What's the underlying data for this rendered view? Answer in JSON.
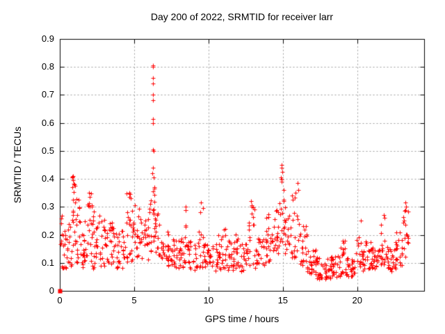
{
  "title": "Day 200 of 2022, SRMTID for receiver larr",
  "chart_data": {
    "type": "scatter",
    "title": "Day 200 of 2022, SRMTID for receiver larr",
    "xlabel": "GPS time / hours",
    "ylabel": "SRMTID / TECUs",
    "xlim": [
      0,
      24.5
    ],
    "ylim": [
      0,
      0.9
    ],
    "xticks": [
      0,
      5,
      10,
      15,
      20
    ],
    "xtick_labels": [
      "0",
      "5",
      "10",
      "15",
      "20"
    ],
    "yticks": [
      0,
      0.1,
      0.2,
      0.3,
      0.4,
      0.5,
      0.6,
      0.7,
      0.8,
      0.9
    ],
    "ytick_labels": [
      "0",
      "0.1",
      "0.2",
      "0.3",
      "0.4",
      "0.5",
      "0.6",
      "0.7",
      "0.8",
      "0.9"
    ],
    "grid": true,
    "grid_color": "#9a9a9a",
    "axis_color": "#000000",
    "marker": "plus",
    "marker_color": "#ff0000",
    "origin_square_point": [
      0.0,
      0.0
    ],
    "bands_comment": "density envelope read from plot: [hour_start, hour_end, value_lo, value_hi, n_points]",
    "bands": [
      [
        0.05,
        0.35,
        0.08,
        0.3,
        16
      ],
      [
        0.35,
        0.8,
        0.08,
        0.26,
        20
      ],
      [
        0.8,
        1.05,
        0.15,
        0.41,
        16
      ],
      [
        1.05,
        1.45,
        0.1,
        0.33,
        18
      ],
      [
        1.45,
        1.8,
        0.08,
        0.27,
        18
      ],
      [
        1.8,
        2.2,
        0.1,
        0.35,
        20
      ],
      [
        2.2,
        2.7,
        0.08,
        0.3,
        22
      ],
      [
        2.7,
        3.2,
        0.08,
        0.26,
        22
      ],
      [
        3.2,
        3.8,
        0.09,
        0.25,
        24
      ],
      [
        3.8,
        4.4,
        0.08,
        0.23,
        24
      ],
      [
        4.4,
        4.95,
        0.1,
        0.35,
        22
      ],
      [
        4.95,
        5.45,
        0.12,
        0.31,
        20
      ],
      [
        5.45,
        5.95,
        0.11,
        0.26,
        20
      ],
      [
        5.95,
        6.2,
        0.14,
        0.33,
        10
      ],
      [
        6.2,
        6.42,
        0.17,
        0.4,
        16
      ],
      [
        6.42,
        6.75,
        0.13,
        0.31,
        14
      ],
      [
        6.75,
        7.3,
        0.09,
        0.22,
        22
      ],
      [
        7.3,
        7.9,
        0.08,
        0.2,
        24
      ],
      [
        7.9,
        8.35,
        0.08,
        0.19,
        18
      ],
      [
        8.35,
        8.65,
        0.09,
        0.29,
        12
      ],
      [
        8.65,
        9.35,
        0.07,
        0.18,
        26
      ],
      [
        9.35,
        9.65,
        0.08,
        0.31,
        12
      ],
      [
        9.65,
        10.35,
        0.07,
        0.17,
        26
      ],
      [
        10.35,
        10.9,
        0.07,
        0.2,
        22
      ],
      [
        10.9,
        11.2,
        0.08,
        0.25,
        12
      ],
      [
        11.2,
        11.75,
        0.07,
        0.18,
        22
      ],
      [
        11.75,
        12.1,
        0.08,
        0.22,
        14
      ],
      [
        12.1,
        12.6,
        0.07,
        0.17,
        20
      ],
      [
        12.6,
        13.1,
        0.09,
        0.3,
        18
      ],
      [
        13.1,
        13.75,
        0.08,
        0.2,
        24
      ],
      [
        13.75,
        14.35,
        0.1,
        0.28,
        24
      ],
      [
        14.35,
        14.8,
        0.13,
        0.33,
        18
      ],
      [
        14.8,
        15.1,
        0.17,
        0.4,
        14
      ],
      [
        15.1,
        15.55,
        0.13,
        0.3,
        18
      ],
      [
        15.55,
        16.1,
        0.11,
        0.35,
        20
      ],
      [
        16.1,
        16.6,
        0.09,
        0.24,
        20
      ],
      [
        16.6,
        17.2,
        0.06,
        0.15,
        24
      ],
      [
        17.2,
        18.2,
        0.04,
        0.12,
        40
      ],
      [
        18.2,
        18.85,
        0.05,
        0.13,
        26
      ],
      [
        18.85,
        19.2,
        0.06,
        0.18,
        14
      ],
      [
        19.2,
        19.9,
        0.05,
        0.13,
        28
      ],
      [
        19.9,
        20.45,
        0.07,
        0.2,
        22
      ],
      [
        20.45,
        20.95,
        0.08,
        0.18,
        20
      ],
      [
        20.95,
        21.55,
        0.07,
        0.16,
        24
      ],
      [
        21.55,
        21.95,
        0.09,
        0.24,
        16
      ],
      [
        21.95,
        22.6,
        0.07,
        0.16,
        26
      ],
      [
        22.6,
        23.0,
        0.09,
        0.22,
        16
      ],
      [
        23.0,
        23.45,
        0.12,
        0.29,
        18
      ]
    ],
    "outliers_comment": "individually visible points [hour, value]",
    "outliers": [
      [
        0.85,
        0.405
      ],
      [
        0.88,
        0.41
      ],
      [
        0.9,
        0.395
      ],
      [
        0.86,
        0.37
      ],
      [
        1.95,
        0.35
      ],
      [
        2.02,
        0.335
      ],
      [
        4.68,
        0.35
      ],
      [
        4.72,
        0.345
      ],
      [
        4.75,
        0.33
      ],
      [
        6.26,
        0.805
      ],
      [
        6.27,
        0.8
      ],
      [
        6.27,
        0.76
      ],
      [
        6.26,
        0.74
      ],
      [
        6.28,
        0.7
      ],
      [
        6.27,
        0.68
      ],
      [
        6.25,
        0.615
      ],
      [
        6.28,
        0.6
      ],
      [
        6.26,
        0.505
      ],
      [
        6.29,
        0.5
      ],
      [
        6.27,
        0.44
      ],
      [
        6.24,
        0.42
      ],
      [
        6.3,
        0.405
      ],
      [
        8.45,
        0.3
      ],
      [
        9.5,
        0.315
      ],
      [
        12.85,
        0.32
      ],
      [
        12.9,
        0.305
      ],
      [
        14.9,
        0.45
      ],
      [
        14.93,
        0.44
      ],
      [
        14.95,
        0.425
      ],
      [
        14.88,
        0.405
      ],
      [
        14.92,
        0.39
      ],
      [
        15.98,
        0.385
      ],
      [
        16.02,
        0.36
      ],
      [
        20.25,
        0.25
      ],
      [
        21.8,
        0.27
      ],
      [
        21.83,
        0.26
      ],
      [
        23.25,
        0.315
      ],
      [
        23.3,
        0.3
      ],
      [
        23.2,
        0.285
      ]
    ]
  }
}
